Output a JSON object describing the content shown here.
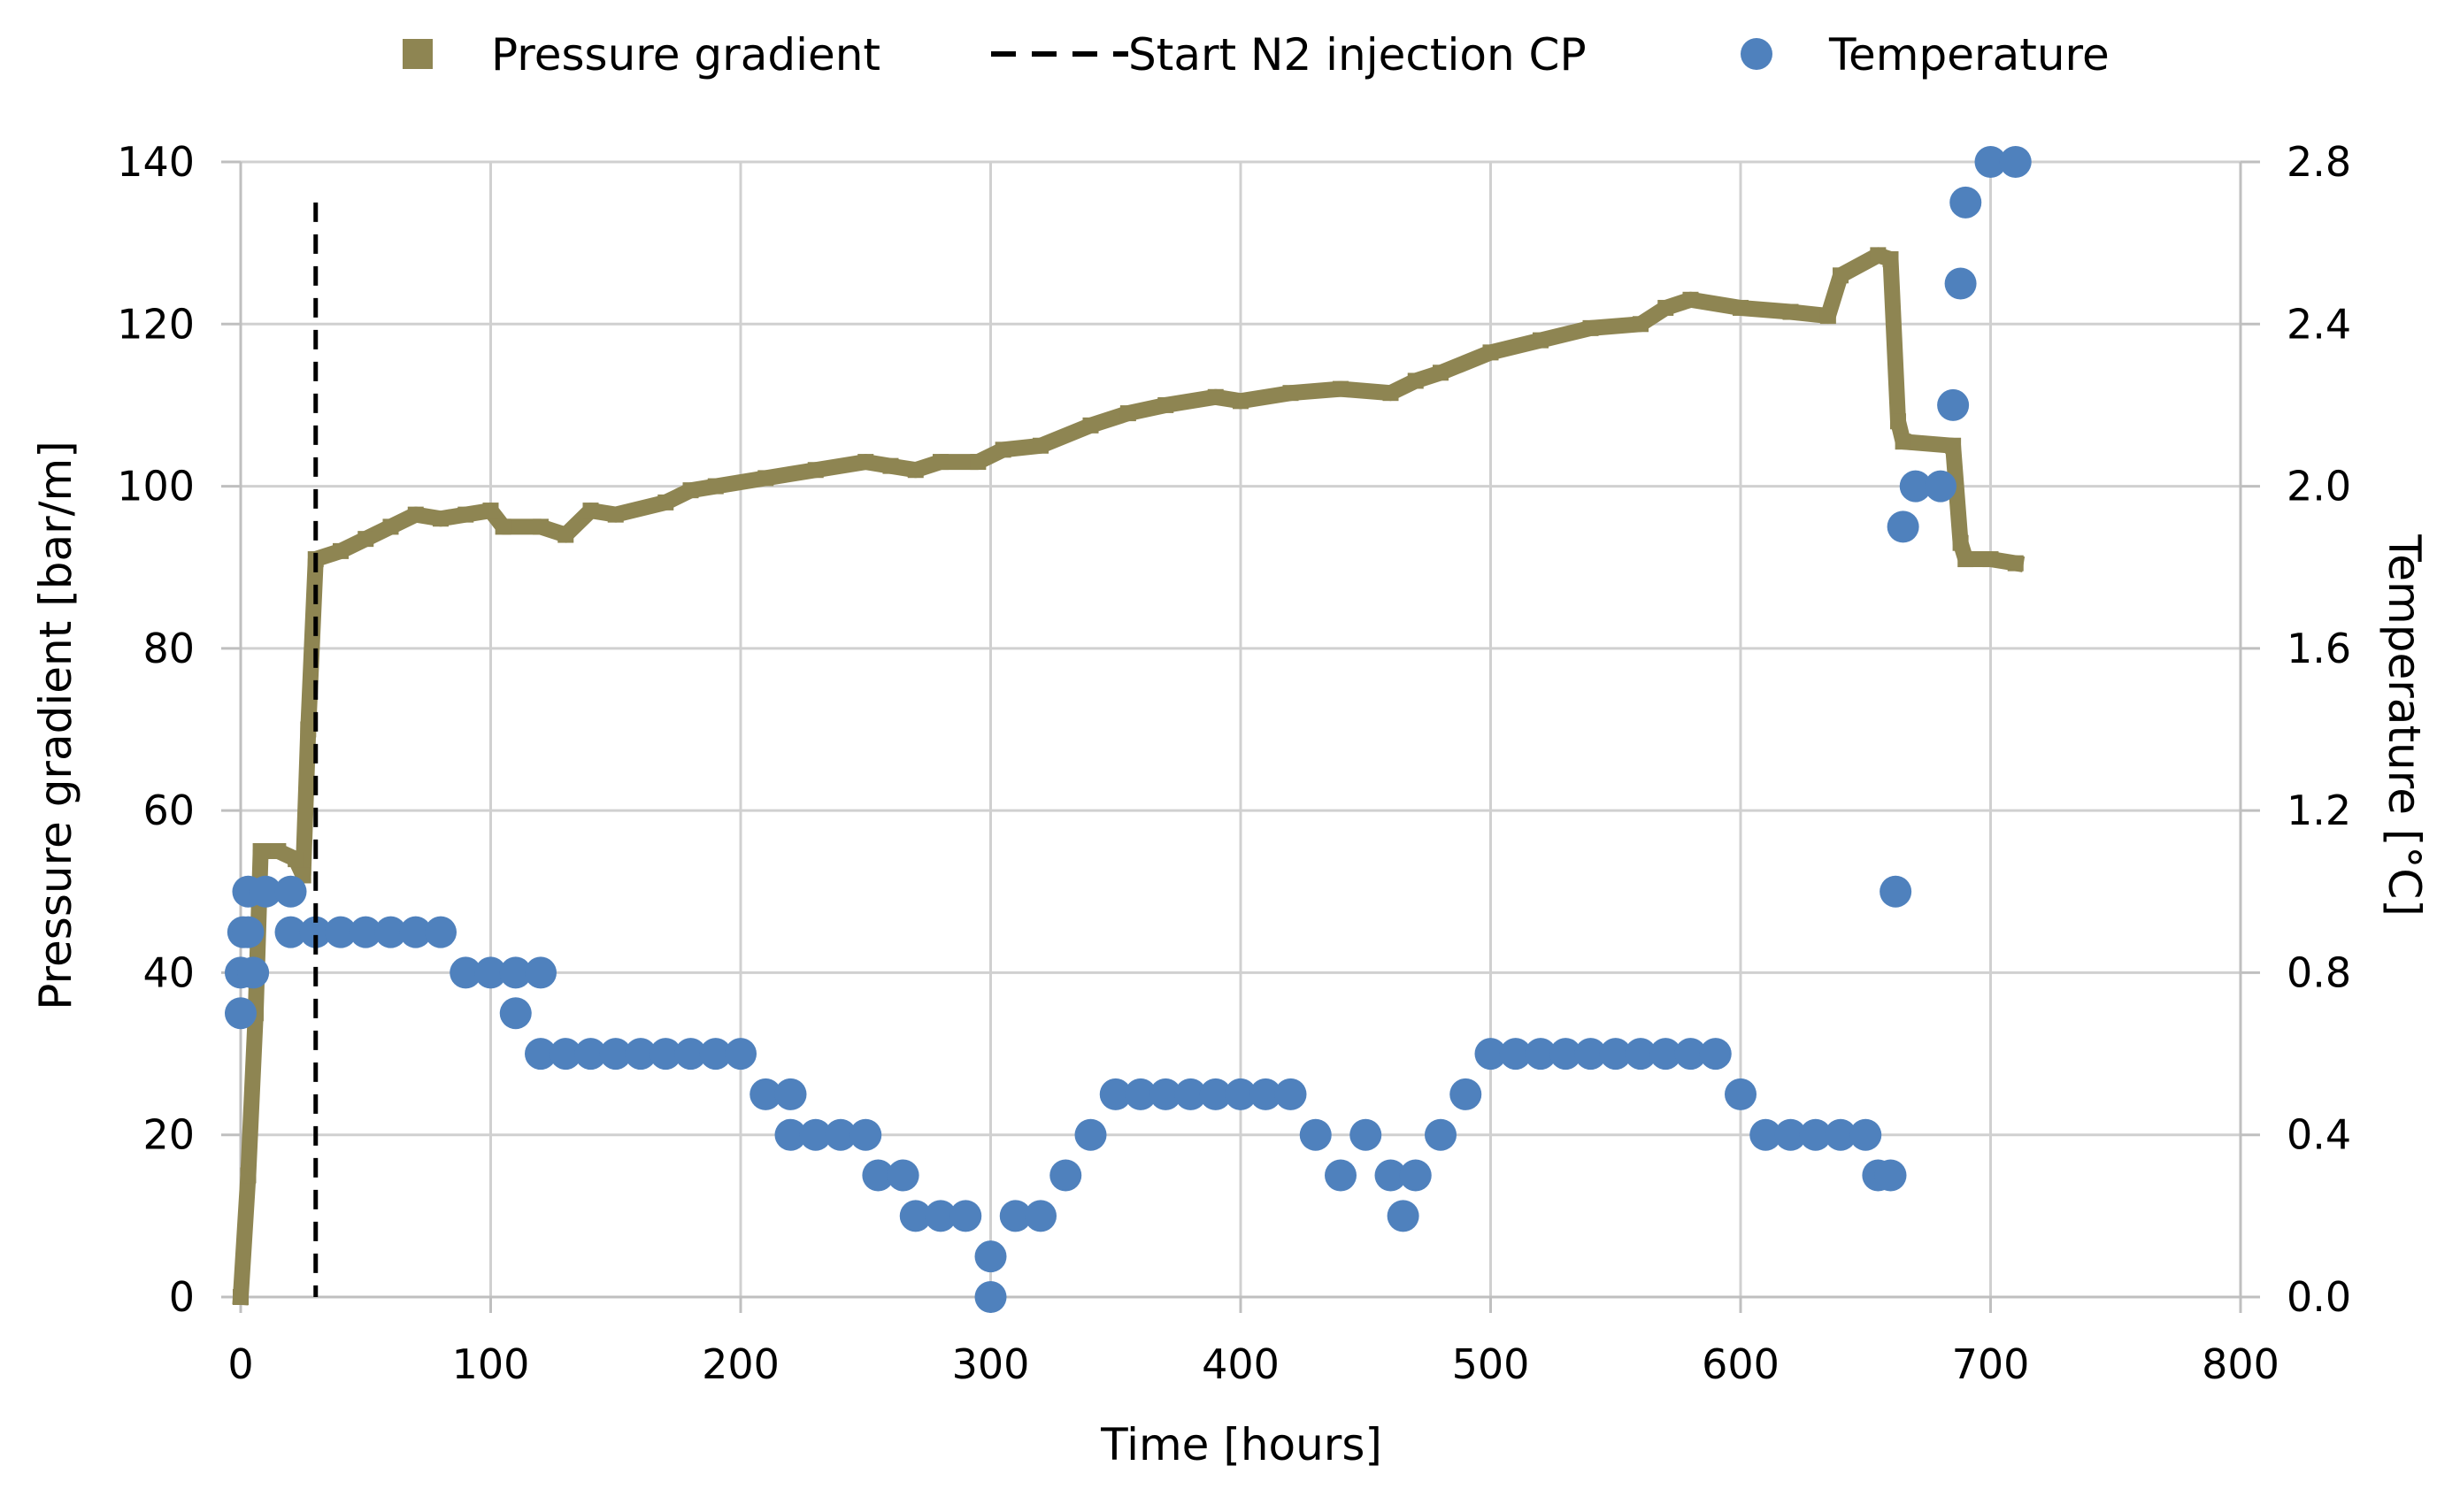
{
  "chart_data": {
    "type": "line+scatter",
    "xlabel": "Time [hours]",
    "ylabel_left": "Pressure gradient [bar/m]",
    "ylabel_right": "Temperature [°C]",
    "xlim": [
      0,
      800
    ],
    "ylim_left": [
      0,
      140
    ],
    "ylim_right": [
      0.0,
      2.8
    ],
    "x_ticks": [
      0,
      100,
      200,
      300,
      400,
      500,
      600,
      700,
      800
    ],
    "x_tick_labels": [
      "0",
      "100",
      "200",
      "300",
      "400",
      "500",
      "600",
      "700",
      "800"
    ],
    "y_left_ticks": [
      0,
      20,
      40,
      60,
      80,
      100,
      120,
      140
    ],
    "y_left_tick_labels": [
      "0",
      "20",
      "40",
      "60",
      "80",
      "100",
      "120",
      "140"
    ],
    "y_right_ticks": [
      0.0,
      0.4,
      0.8,
      1.2,
      1.6,
      2.0,
      2.4,
      2.8
    ],
    "y_right_tick_labels": [
      "0.0",
      "0.4",
      "0.8",
      "1.2",
      "1.6",
      "2.0",
      "2.4",
      "2.8"
    ],
    "grid": true,
    "legend": {
      "placement": "top-center",
      "items": [
        {
          "label": "Pressure gradient",
          "marker": "square",
          "color": "#8E8552"
        },
        {
          "label": "Start N2 injection CP",
          "marker": "dashed-line",
          "color": "#000000"
        },
        {
          "label": "Temperature",
          "marker": "circle",
          "color": "#4F81BD"
        }
      ]
    },
    "series": [
      {
        "name": "Pressure gradient",
        "axis": "left",
        "color": "#8E8552",
        "points": [
          [
            0,
            0
          ],
          [
            3,
            15
          ],
          [
            6,
            35
          ],
          [
            8,
            55
          ],
          [
            15,
            55
          ],
          [
            22,
            54
          ],
          [
            25,
            52
          ],
          [
            27,
            70
          ],
          [
            30,
            91
          ],
          [
            40,
            92
          ],
          [
            50,
            93.5
          ],
          [
            60,
            95
          ],
          [
            70,
            96.5
          ],
          [
            80,
            96
          ],
          [
            90,
            96.5
          ],
          [
            100,
            97
          ],
          [
            105,
            95
          ],
          [
            120,
            95
          ],
          [
            130,
            94
          ],
          [
            140,
            97
          ],
          [
            150,
            96.5
          ],
          [
            170,
            98
          ],
          [
            180,
            99.5
          ],
          [
            190,
            100
          ],
          [
            210,
            101
          ],
          [
            230,
            102
          ],
          [
            250,
            103
          ],
          [
            260,
            102.5
          ],
          [
            270,
            102
          ],
          [
            280,
            103
          ],
          [
            295,
            103
          ],
          [
            305,
            104.5
          ],
          [
            320,
            105
          ],
          [
            340,
            107.5
          ],
          [
            355,
            109
          ],
          [
            370,
            110
          ],
          [
            390,
            111
          ],
          [
            400,
            110.5
          ],
          [
            420,
            111.5
          ],
          [
            440,
            112
          ],
          [
            460,
            111.5
          ],
          [
            470,
            113
          ],
          [
            480,
            114
          ],
          [
            500,
            116.5
          ],
          [
            520,
            118
          ],
          [
            540,
            119.5
          ],
          [
            560,
            120
          ],
          [
            570,
            122
          ],
          [
            580,
            123
          ],
          [
            600,
            122
          ],
          [
            620,
            121.5
          ],
          [
            635,
            121
          ],
          [
            640,
            126
          ],
          [
            655,
            128.5
          ],
          [
            660,
            128
          ],
          [
            663,
            108
          ],
          [
            665,
            105.5
          ],
          [
            685,
            105
          ],
          [
            688,
            93
          ],
          [
            690,
            91
          ],
          [
            700,
            91
          ],
          [
            710,
            90.5
          ]
        ]
      },
      {
        "name": "Temperature",
        "axis": "right",
        "color": "#4F81BD",
        "points": [
          [
            0,
            0.7
          ],
          [
            0,
            0.8
          ],
          [
            1,
            0.9
          ],
          [
            3,
            1.0
          ],
          [
            3,
            0.9
          ],
          [
            5,
            0.8
          ],
          [
            10,
            1.0
          ],
          [
            20,
            1.0
          ],
          [
            20,
            0.9
          ],
          [
            30,
            0.9
          ],
          [
            40,
            0.9
          ],
          [
            50,
            0.9
          ],
          [
            60,
            0.9
          ],
          [
            70,
            0.9
          ],
          [
            80,
            0.9
          ],
          [
            90,
            0.8
          ],
          [
            100,
            0.8
          ],
          [
            110,
            0.8
          ],
          [
            120,
            0.8
          ],
          [
            110,
            0.7
          ],
          [
            120,
            0.6
          ],
          [
            130,
            0.6
          ],
          [
            140,
            0.6
          ],
          [
            150,
            0.6
          ],
          [
            160,
            0.6
          ],
          [
            170,
            0.6
          ],
          [
            180,
            0.6
          ],
          [
            190,
            0.6
          ],
          [
            200,
            0.6
          ],
          [
            210,
            0.5
          ],
          [
            220,
            0.5
          ],
          [
            220,
            0.4
          ],
          [
            230,
            0.4
          ],
          [
            240,
            0.4
          ],
          [
            250,
            0.4
          ],
          [
            255,
            0.3
          ],
          [
            265,
            0.3
          ],
          [
            270,
            0.2
          ],
          [
            280,
            0.2
          ],
          [
            290,
            0.2
          ],
          [
            300,
            0.1
          ],
          [
            300,
            0.0
          ],
          [
            310,
            0.2
          ],
          [
            320,
            0.2
          ],
          [
            330,
            0.3
          ],
          [
            340,
            0.4
          ],
          [
            350,
            0.5
          ],
          [
            360,
            0.5
          ],
          [
            370,
            0.5
          ],
          [
            380,
            0.5
          ],
          [
            390,
            0.5
          ],
          [
            400,
            0.5
          ],
          [
            410,
            0.5
          ],
          [
            420,
            0.5
          ],
          [
            430,
            0.4
          ],
          [
            440,
            0.3
          ],
          [
            450,
            0.4
          ],
          [
            460,
            0.3
          ],
          [
            465,
            0.2
          ],
          [
            470,
            0.3
          ],
          [
            480,
            0.4
          ],
          [
            490,
            0.5
          ],
          [
            500,
            0.6
          ],
          [
            510,
            0.6
          ],
          [
            520,
            0.6
          ],
          [
            530,
            0.6
          ],
          [
            540,
            0.6
          ],
          [
            550,
            0.6
          ],
          [
            560,
            0.6
          ],
          [
            570,
            0.6
          ],
          [
            580,
            0.6
          ],
          [
            590,
            0.6
          ],
          [
            600,
            0.5
          ],
          [
            610,
            0.4
          ],
          [
            620,
            0.4
          ],
          [
            630,
            0.4
          ],
          [
            640,
            0.4
          ],
          [
            650,
            0.4
          ],
          [
            655,
            0.3
          ],
          [
            660,
            0.3
          ],
          [
            662,
            1.0
          ],
          [
            665,
            1.9
          ],
          [
            670,
            2.0
          ],
          [
            680,
            2.0
          ],
          [
            685,
            2.2
          ],
          [
            688,
            2.5
          ],
          [
            690,
            2.7
          ],
          [
            700,
            2.8
          ],
          [
            710,
            2.8
          ]
        ]
      },
      {
        "name": "Start N2 injection CP",
        "axis": "left",
        "type": "vertical-line",
        "color": "#000000",
        "x": 30
      }
    ]
  }
}
